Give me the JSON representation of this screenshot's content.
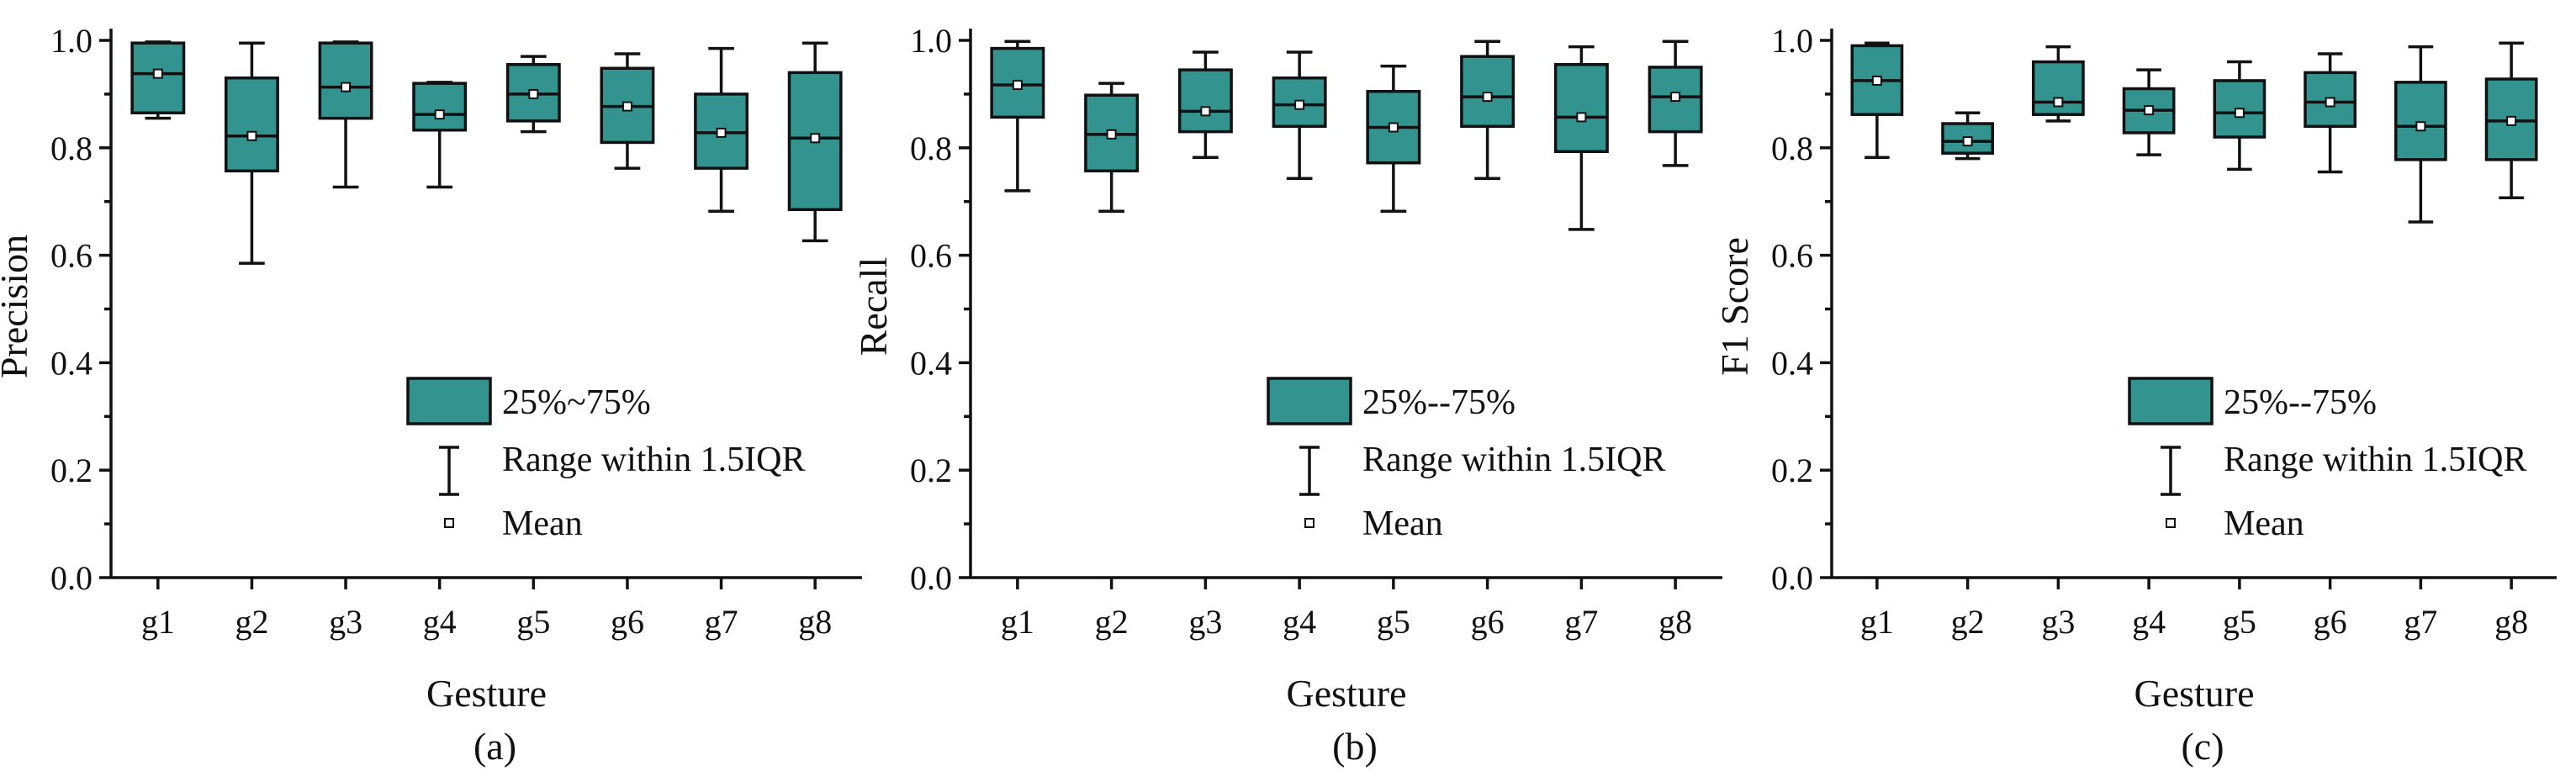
{
  "colors": {
    "box_fill": "#33948f",
    "axis": "#111111",
    "background": "#ffffff"
  },
  "legend": {
    "box_label": "25%~75%",
    "box_label_alt": "25%--75%",
    "whisker_label": "Range within 1.5IQR",
    "mean_label": "Mean"
  },
  "chart_data": [
    {
      "type": "box",
      "panel": "(a)",
      "xlabel": "Gesture",
      "ylabel": "Precision",
      "ylim": [
        0,
        1.0
      ],
      "yticks": [
        "0.0",
        "0.2",
        "0.4",
        "0.6",
        "0.8",
        "1.0"
      ],
      "categories": [
        "g1",
        "g2",
        "g3",
        "g4",
        "g5",
        "g6",
        "g7",
        "g8"
      ],
      "boxes": [
        {
          "min": 0.855,
          "q1": 0.865,
          "median": 0.938,
          "mean": 0.938,
          "q3": 0.995,
          "max": 0.997
        },
        {
          "min": 0.585,
          "q1": 0.757,
          "median": 0.822,
          "mean": 0.822,
          "q3": 0.93,
          "max": 0.995
        },
        {
          "min": 0.727,
          "q1": 0.855,
          "median": 0.913,
          "mean": 0.913,
          "q3": 0.995,
          "max": 0.997
        },
        {
          "min": 0.727,
          "q1": 0.833,
          "median": 0.862,
          "mean": 0.862,
          "q3": 0.92,
          "max": 0.922
        },
        {
          "min": 0.83,
          "q1": 0.85,
          "median": 0.9,
          "mean": 0.9,
          "q3": 0.955,
          "max": 0.97
        },
        {
          "min": 0.762,
          "q1": 0.81,
          "median": 0.877,
          "mean": 0.877,
          "q3": 0.948,
          "max": 0.975
        },
        {
          "min": 0.682,
          "q1": 0.762,
          "median": 0.828,
          "mean": 0.828,
          "q3": 0.9,
          "max": 0.985
        },
        {
          "min": 0.627,
          "q1": 0.685,
          "median": 0.818,
          "mean": 0.818,
          "q3": 0.94,
          "max": 0.995
        }
      ],
      "legend_box_label_key": "box_label",
      "caption": "(a)"
    },
    {
      "type": "box",
      "panel": "(b)",
      "xlabel": "Gesture",
      "ylabel": "Recall",
      "ylim": [
        0,
        1.0
      ],
      "yticks": [
        "0.0",
        "0.2",
        "0.4",
        "0.6",
        "0.8",
        "1.0"
      ],
      "categories": [
        "g1",
        "g2",
        "g3",
        "g4",
        "g5",
        "g6",
        "g7",
        "g8"
      ],
      "boxes": [
        {
          "min": 0.72,
          "q1": 0.857,
          "median": 0.917,
          "mean": 0.917,
          "q3": 0.985,
          "max": 0.998
        },
        {
          "min": 0.682,
          "q1": 0.757,
          "median": 0.825,
          "mean": 0.825,
          "q3": 0.898,
          "max": 0.92
        },
        {
          "min": 0.782,
          "q1": 0.83,
          "median": 0.868,
          "mean": 0.868,
          "q3": 0.945,
          "max": 0.978
        },
        {
          "min": 0.743,
          "q1": 0.84,
          "median": 0.88,
          "mean": 0.88,
          "q3": 0.93,
          "max": 0.978
        },
        {
          "min": 0.682,
          "q1": 0.772,
          "median": 0.838,
          "mean": 0.838,
          "q3": 0.905,
          "max": 0.952
        },
        {
          "min": 0.743,
          "q1": 0.84,
          "median": 0.895,
          "mean": 0.895,
          "q3": 0.97,
          "max": 0.998
        },
        {
          "min": 0.648,
          "q1": 0.793,
          "median": 0.857,
          "mean": 0.857,
          "q3": 0.955,
          "max": 0.988
        },
        {
          "min": 0.767,
          "q1": 0.83,
          "median": 0.895,
          "mean": 0.895,
          "q3": 0.95,
          "max": 0.998
        }
      ],
      "legend_box_label_key": "box_label_alt",
      "caption": "(b)"
    },
    {
      "type": "box",
      "panel": "(c)",
      "xlabel": "Gesture",
      "ylabel": "F1 Score",
      "ylim": [
        0,
        1.0
      ],
      "yticks": [
        "0.0",
        "0.2",
        "0.4",
        "0.6",
        "0.8",
        "1.0"
      ],
      "categories": [
        "g1",
        "g2",
        "g3",
        "g4",
        "g5",
        "g6",
        "g7",
        "g8"
      ],
      "boxes": [
        {
          "min": 0.782,
          "q1": 0.862,
          "median": 0.925,
          "mean": 0.925,
          "q3": 0.99,
          "max": 0.995
        },
        {
          "min": 0.78,
          "q1": 0.79,
          "median": 0.812,
          "mean": 0.812,
          "q3": 0.845,
          "max": 0.865
        },
        {
          "min": 0.85,
          "q1": 0.862,
          "median": 0.885,
          "mean": 0.885,
          "q3": 0.96,
          "max": 0.988
        },
        {
          "min": 0.787,
          "q1": 0.828,
          "median": 0.87,
          "mean": 0.87,
          "q3": 0.91,
          "max": 0.945
        },
        {
          "min": 0.76,
          "q1": 0.82,
          "median": 0.865,
          "mean": 0.865,
          "q3": 0.925,
          "max": 0.96
        },
        {
          "min": 0.755,
          "q1": 0.84,
          "median": 0.885,
          "mean": 0.885,
          "q3": 0.94,
          "max": 0.975
        },
        {
          "min": 0.662,
          "q1": 0.778,
          "median": 0.84,
          "mean": 0.84,
          "q3": 0.922,
          "max": 0.988
        },
        {
          "min": 0.707,
          "q1": 0.778,
          "median": 0.85,
          "mean": 0.85,
          "q3": 0.928,
          "max": 0.995
        }
      ],
      "legend_box_label_key": "box_label_alt",
      "caption": "(c)"
    }
  ]
}
